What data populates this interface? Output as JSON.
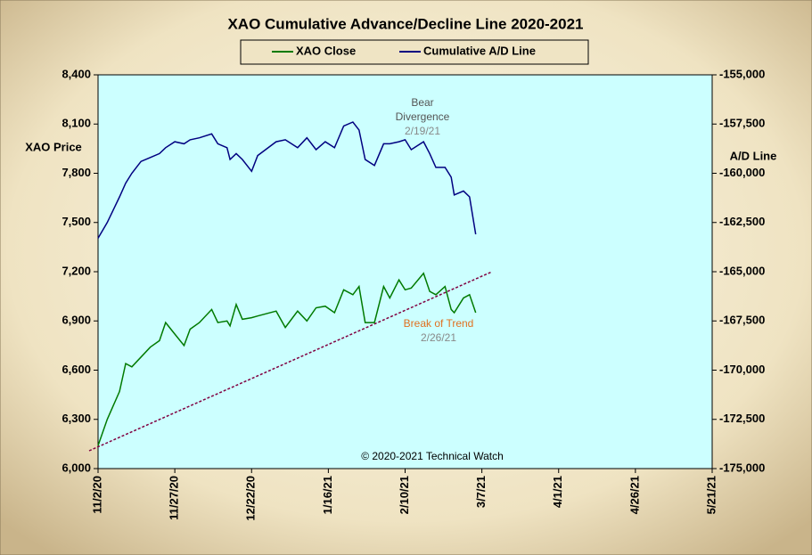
{
  "chart_data": {
    "type": "line",
    "title": "XAO Cumulative Advance/Decline Line 2020-2021",
    "y_label": "XAO Price",
    "y2_label": "A/D Line",
    "annotations": [
      "Bear",
      "Divergence",
      "2/19/21",
      "Break of Trend",
      "2/26/21",
      "© 2020-2021  Technical  Watch"
    ],
    "x": [
      "11/2/20",
      "11/5/20",
      "11/9/20",
      "11/11/20",
      "11/13/20",
      "11/16/20",
      "11/19/20",
      "11/22/20",
      "11/24/20",
      "11/27/20",
      "11/30/20",
      "12/2/20",
      "12/5/20",
      "12/9/20",
      "12/11/20",
      "12/14/20",
      "12/15/20",
      "12/17/20",
      "12/19/20",
      "12/22/20",
      "12/24/20",
      "12/30/20",
      "1/2/21",
      "1/6/21",
      "1/9/21",
      "1/12/21",
      "1/15/21",
      "1/18/21",
      "1/21/21",
      "1/24/21",
      "1/26/21",
      "1/28/21",
      "1/31/21",
      "2/3/21",
      "2/5/21",
      "2/8/21",
      "2/10/21",
      "2/12/21",
      "2/16/21",
      "2/18/21",
      "2/20/21",
      "2/23/21",
      "2/25/21",
      "2/26/21",
      "3/1/21",
      "3/3/21",
      "3/5/21"
    ],
    "series": [
      {
        "name": "XAO Close",
        "color": "#007a00",
        "values": [
          6140,
          6300,
          6470,
          6640,
          6620,
          6680,
          6740,
          6780,
          6890,
          6820,
          6750,
          6850,
          6890,
          6970,
          6890,
          6900,
          6870,
          7000,
          6910,
          6920,
          6930,
          6960,
          6860,
          6960,
          6900,
          6980,
          6990,
          6950,
          7090,
          7060,
          7110,
          6890,
          6890,
          7110,
          7040,
          7150,
          7090,
          7100,
          7190,
          7080,
          7060,
          7110,
          6970,
          6950,
          7040,
          7060,
          6950
        ]
      },
      {
        "name": "Cumulative A/D Line",
        "color": "#000080",
        "axis": "y2",
        "values": [
          -163300,
          -162500,
          -161200,
          -160500,
          -160000,
          -159400,
          -159200,
          -159000,
          -158700,
          -158400,
          -158500,
          -158300,
          -158200,
          -158000,
          -158500,
          -158700,
          -159300,
          -159000,
          -159300,
          -159900,
          -159100,
          -158400,
          -158300,
          -158700,
          -158200,
          -158800,
          -158400,
          -158700,
          -157600,
          -157400,
          -157800,
          -159300,
          -159600,
          -158500,
          -158500,
          -158400,
          -158300,
          -158800,
          -158400,
          -159000,
          -159700,
          -159700,
          -160200,
          -161100,
          -160900,
          -161200,
          -163100
        ]
      }
    ],
    "xlim": [
      "11/2/20",
      "5/21/21"
    ],
    "xticks": [
      "11/2/20",
      "11/27/20",
      "12/22/20",
      "1/16/21",
      "2/10/21",
      "3/7/21",
      "4/1/21",
      "4/26/21",
      "5/21/21"
    ],
    "ylim": [
      6000,
      8400
    ],
    "yticks": [
      {
        "value": 6000,
        "label": "6,000"
      },
      {
        "value": 6300,
        "label": "6,300"
      },
      {
        "value": 6600,
        "label": "6,600"
      },
      {
        "value": 6900,
        "label": "6,900"
      },
      {
        "value": 7200,
        "label": "7,200"
      },
      {
        "value": 7500,
        "label": "7,500"
      },
      {
        "value": 7800,
        "label": "7,800"
      },
      {
        "value": 8100,
        "label": "8,100"
      },
      {
        "value": 8400,
        "label": "8,400"
      }
    ],
    "y2lim": [
      -175000,
      -155000
    ],
    "y2ticks": [
      {
        "value": -175000,
        "label": "-175,000"
      },
      {
        "value": -172500,
        "label": "-172,500"
      },
      {
        "value": -170000,
        "label": "-170,000"
      },
      {
        "value": -167500,
        "label": "-167,500"
      },
      {
        "value": -165000,
        "label": "-165,000"
      },
      {
        "value": -162500,
        "label": "-162,500"
      },
      {
        "value": -160000,
        "label": "-160,000"
      },
      {
        "value": -157500,
        "label": "-157,500"
      },
      {
        "value": -155000,
        "label": "-155,000"
      }
    ],
    "legend": "top"
  }
}
